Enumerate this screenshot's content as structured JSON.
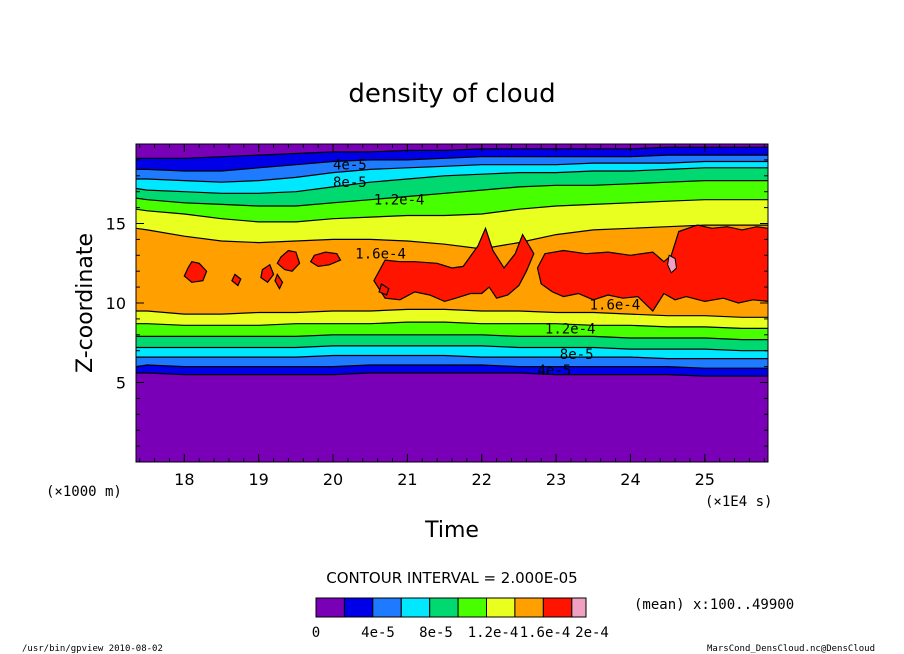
{
  "chart_data": {
    "type": "heatmap",
    "title": "density of cloud",
    "xlabel": "Time",
    "ylabel": "Z-coordinate",
    "x_unit": "(×1E4 s)",
    "y_unit": "(×1000 m)",
    "xlim": [
      17.35,
      25.85
    ],
    "ylim": [
      0,
      20
    ],
    "x_ticks": [
      "18",
      "19",
      "20",
      "21",
      "22",
      "23",
      "24",
      "25"
    ],
    "y_ticks": [
      "5",
      "10",
      "15"
    ],
    "contour_interval_text": "CONTOUR INTERVAL = 2.000E-05",
    "mean_text": "(mean) x:100..49900",
    "levels": [
      0,
      2e-05,
      4e-05,
      6e-05,
      8e-05,
      0.0001,
      0.00012,
      0.00014,
      0.00016,
      0.00018,
      0.0002
    ],
    "colorbar_colors": [
      "#7a00b8",
      "#0000e8",
      "#1e7bff",
      "#00e8ff",
      "#00d870",
      "#48ff00",
      "#e8ff20",
      "#ffa000",
      "#ff1400",
      "#f0a0c0"
    ],
    "colorbar_labels": [
      "0",
      "4e-5",
      "8e-5",
      "1.2e-4",
      "1.6e-4",
      "2e-4"
    ],
    "contour_labels": [
      {
        "text": "4e-5",
        "x": 20.0,
        "y": 18.7
      },
      {
        "text": "8e-5",
        "x": 20.0,
        "y": 17.6
      },
      {
        "text": "1.2e-4",
        "x": 20.55,
        "y": 16.5
      },
      {
        "text": "1.6e-4",
        "x": 20.3,
        "y": 13.1
      },
      {
        "text": "1.6e-4",
        "x": 23.45,
        "y": 9.9
      },
      {
        "text": "1.2e-4",
        "x": 22.85,
        "y": 8.4
      },
      {
        "text": "8e-5",
        "x": 23.05,
        "y": 6.8
      },
      {
        "text": "4e-5",
        "x": 22.75,
        "y": 5.8
      }
    ],
    "band_boundaries_z": {
      "time": [
        17.35,
        17.5,
        18.0,
        18.5,
        19.0,
        19.5,
        20.0,
        20.5,
        21.0,
        21.5,
        22.0,
        22.5,
        23.0,
        23.5,
        24.0,
        24.5,
        25.0,
        25.5,
        25.85
      ],
      "2e-5_low": [
        5.6,
        5.6,
        5.5,
        5.5,
        5.5,
        5.5,
        5.5,
        5.6,
        5.6,
        5.6,
        5.6,
        5.6,
        5.5,
        5.5,
        5.5,
        5.5,
        5.4,
        5.4,
        5.4
      ],
      "4e-5_low": [
        6.0,
        6.1,
        6.0,
        6.0,
        6.0,
        6.0,
        6.0,
        6.1,
        6.1,
        6.1,
        6.1,
        6.0,
        6.0,
        6.0,
        6.0,
        6.0,
        5.9,
        5.9,
        5.9
      ],
      "6e-5_low": [
        6.6,
        6.6,
        6.6,
        6.6,
        6.6,
        6.6,
        6.7,
        6.7,
        6.7,
        6.7,
        6.6,
        6.6,
        6.6,
        6.6,
        6.6,
        6.5,
        6.5,
        6.5,
        6.5
      ],
      "8e-5_low": [
        7.2,
        7.2,
        7.2,
        7.2,
        7.2,
        7.2,
        7.3,
        7.3,
        7.3,
        7.3,
        7.3,
        7.2,
        7.2,
        7.2,
        7.1,
        7.1,
        7.1,
        7.0,
        7.0
      ],
      "1e-4_low": [
        7.9,
        7.9,
        7.9,
        7.9,
        7.9,
        7.9,
        8.0,
        8.0,
        8.0,
        8.0,
        8.0,
        7.9,
        7.9,
        7.9,
        7.8,
        7.8,
        7.8,
        7.7,
        7.7
      ],
      "1.2e-4_low": [
        8.7,
        8.7,
        8.6,
        8.6,
        8.6,
        8.7,
        8.7,
        8.7,
        8.8,
        8.8,
        8.7,
        8.7,
        8.7,
        8.6,
        8.6,
        8.5,
        8.5,
        8.4,
        8.4
      ],
      "1.4e-4_low": [
        9.5,
        9.5,
        9.3,
        9.3,
        9.4,
        9.4,
        9.5,
        9.5,
        9.6,
        9.6,
        9.5,
        9.5,
        9.4,
        9.4,
        9.3,
        9.2,
        9.2,
        9.1,
        9.1
      ],
      "1.4e-4_high": [
        14.7,
        14.6,
        14.2,
        13.9,
        13.8,
        13.9,
        14.0,
        14.0,
        13.9,
        13.7,
        13.4,
        13.8,
        14.3,
        14.6,
        14.7,
        14.8,
        14.9,
        14.9,
        14.9
      ],
      "1.2e-4_high": [
        15.9,
        15.8,
        15.6,
        15.3,
        15.1,
        15.1,
        15.3,
        15.4,
        15.5,
        15.5,
        15.6,
        15.9,
        16.1,
        16.2,
        16.3,
        16.4,
        16.5,
        16.5,
        16.5
      ],
      "1e-4_high": [
        16.6,
        16.5,
        16.3,
        16.2,
        16.1,
        16.1,
        16.3,
        16.5,
        16.7,
        16.9,
        17.1,
        17.3,
        17.4,
        17.4,
        17.5,
        17.6,
        17.7,
        17.7,
        17.7
      ],
      "8e-5_high": [
        17.2,
        17.1,
        17.0,
        16.9,
        16.9,
        17.0,
        17.3,
        17.6,
        17.8,
        18.0,
        18.1,
        18.2,
        18.2,
        18.3,
        18.3,
        18.4,
        18.5,
        18.5,
        18.5
      ],
      "6e-5_high": [
        17.8,
        17.8,
        17.7,
        17.6,
        17.7,
        17.9,
        18.2,
        18.4,
        18.5,
        18.6,
        18.7,
        18.7,
        18.7,
        18.8,
        18.8,
        18.8,
        18.9,
        18.9,
        18.9
      ],
      "4e-5_high": [
        18.4,
        18.4,
        18.3,
        18.3,
        18.5,
        18.7,
        18.9,
        19.0,
        19.0,
        19.1,
        19.2,
        19.2,
        19.2,
        19.2,
        19.2,
        19.3,
        19.3,
        19.3,
        19.3
      ],
      "2e-5_high": [
        19.1,
        19.1,
        19.1,
        19.2,
        19.3,
        19.4,
        19.5,
        19.5,
        19.6,
        19.6,
        19.7,
        19.7,
        19.7,
        19.7,
        19.7,
        19.8,
        19.8,
        19.8,
        19.8
      ]
    },
    "red_region_1.6e-4": [
      {
        "x": [
          20.7,
          20.9,
          21.1,
          21.4,
          21.6,
          21.75,
          21.95,
          22.05,
          22.15,
          22.3,
          22.45,
          22.55,
          22.7,
          22.6,
          22.5,
          22.35,
          22.2,
          22.1,
          22.0,
          21.85,
          21.65,
          21.5,
          21.3,
          21.1,
          20.9,
          20.7,
          20.55,
          20.7
        ],
        "z": [
          12.7,
          12.6,
          12.6,
          12.5,
          12.2,
          12.3,
          13.6,
          14.7,
          13.3,
          12.2,
          13.1,
          14.3,
          13.1,
          12.0,
          11.1,
          10.5,
          10.3,
          11.0,
          10.6,
          10.6,
          10.3,
          10.1,
          10.5,
          10.7,
          10.2,
          10.3,
          11.4,
          12.7
        ]
      },
      {
        "x": [
          22.85,
          23.1,
          23.4,
          23.7,
          24.0,
          24.3,
          24.45,
          24.55,
          24.65,
          24.9,
          25.1,
          25.3,
          25.5,
          25.7,
          25.85,
          25.85,
          25.65,
          25.45,
          25.25,
          25.0,
          24.75,
          24.6,
          24.45,
          24.3,
          24.1,
          23.9,
          23.7,
          23.5,
          23.3,
          23.1,
          22.95,
          22.8,
          22.75,
          22.85
        ],
        "z": [
          13.1,
          13.3,
          13.1,
          13.2,
          13.0,
          13.2,
          12.6,
          13.0,
          14.5,
          14.9,
          14.7,
          14.8,
          14.6,
          14.8,
          14.7,
          10.1,
          10.2,
          10.0,
          10.3,
          10.1,
          10.4,
          10.2,
          10.6,
          9.5,
          10.4,
          10.3,
          10.5,
          10.2,
          10.6,
          10.4,
          10.7,
          11.2,
          12.2,
          13.1
        ]
      },
      {
        "x": [
          18.05,
          18.1,
          18.2,
          18.3,
          18.25,
          18.1,
          18.0,
          18.05
        ],
        "z": [
          12.2,
          12.6,
          12.5,
          12.0,
          11.4,
          11.3,
          11.7,
          12.2
        ]
      },
      {
        "x": [
          19.3,
          19.4,
          19.5,
          19.55,
          19.45,
          19.35,
          19.25,
          19.3
        ],
        "z": [
          12.9,
          13.3,
          13.2,
          12.5,
          12.0,
          12.1,
          12.5,
          12.9
        ]
      },
      {
        "x": [
          19.75,
          19.9,
          20.05,
          20.1,
          19.95,
          19.8,
          19.7,
          19.75
        ],
        "z": [
          13.0,
          13.2,
          13.1,
          12.7,
          12.4,
          12.3,
          12.6,
          13.0
        ]
      },
      {
        "x": [
          19.05,
          19.15,
          19.2,
          19.12,
          19.03,
          19.05
        ],
        "z": [
          12.1,
          12.4,
          11.8,
          11.3,
          11.6,
          12.1
        ]
      },
      {
        "x": [
          18.68,
          18.76,
          18.72,
          18.64,
          18.68
        ],
        "z": [
          11.8,
          11.5,
          11.1,
          11.4,
          11.8
        ]
      },
      {
        "x": [
          20.65,
          20.75,
          20.72,
          20.62,
          20.65
        ],
        "z": [
          11.2,
          10.9,
          10.5,
          10.7,
          11.2
        ]
      },
      {
        "x": [
          19.25,
          19.32,
          19.28,
          19.22,
          19.25
        ],
        "z": [
          11.8,
          11.3,
          10.9,
          11.4,
          11.8
        ]
      }
    ],
    "pink_region_1.8e-4": [
      {
        "x": [
          24.52,
          24.6,
          24.62,
          24.55,
          24.5,
          24.52
        ],
        "z": [
          13.0,
          12.8,
          12.2,
          11.9,
          12.4,
          13.0
        ]
      }
    ]
  },
  "footer": {
    "left": "/usr/bin/gpview  2010-08-02",
    "right": "MarsCond_DensCloud.nc@DensCloud"
  }
}
